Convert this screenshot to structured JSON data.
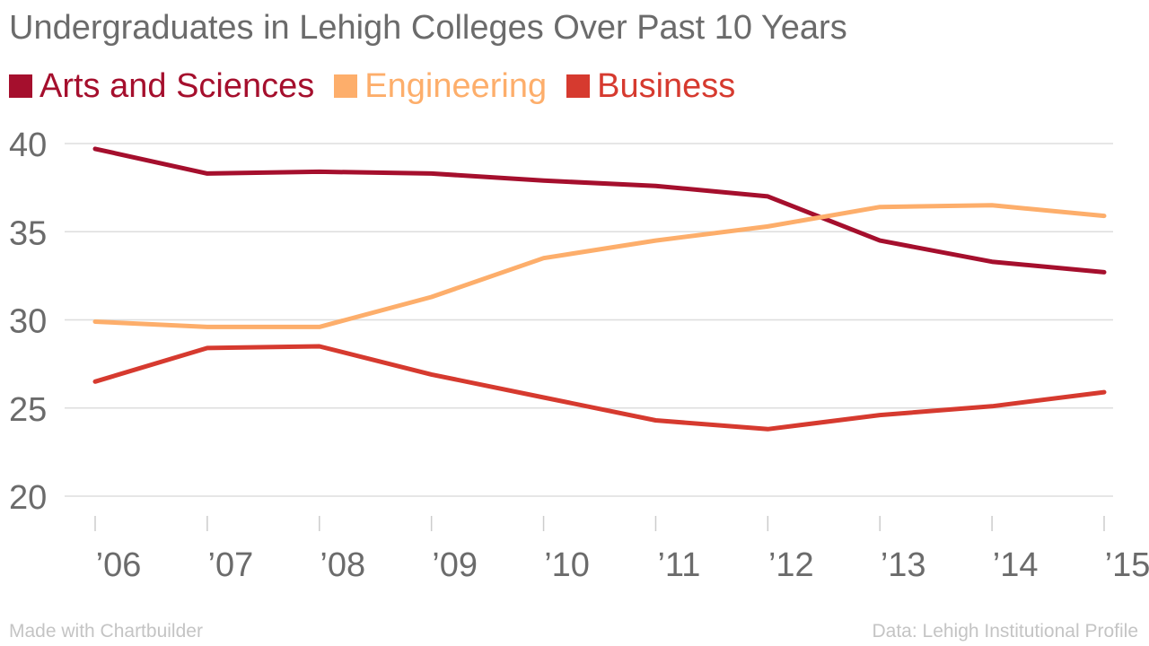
{
  "header": {
    "title": "Undergraduates in Lehigh Colleges Over Past 10 Years"
  },
  "footer": {
    "made_with": "Made with Chartbuilder",
    "source": "Data: Lehigh Institutional Profile"
  },
  "chart_data": {
    "type": "line",
    "title": "Undergraduates in Lehigh Colleges Over Past 10 Years",
    "xlabel": "",
    "ylabel": "",
    "categories": [
      "’06",
      "’07",
      "’08",
      "’09",
      "’10",
      "’11",
      "’12",
      "’13",
      "’14",
      "’15"
    ],
    "ylim": [
      20,
      40
    ],
    "yticks": [
      40,
      35,
      30,
      25,
      20
    ],
    "grid": true,
    "legend_position": "top-left",
    "series": [
      {
        "name": "Arts and Sciences",
        "color": "#a50f2d",
        "values": [
          39.7,
          38.3,
          38.4,
          38.3,
          37.9,
          37.6,
          37.0,
          34.5,
          33.3,
          32.7
        ]
      },
      {
        "name": "Engineering",
        "color": "#fdae6b",
        "values": [
          29.9,
          29.6,
          29.6,
          31.3,
          33.5,
          34.5,
          35.3,
          36.4,
          36.5,
          35.9
        ]
      },
      {
        "name": "Business",
        "color": "#d63a2f",
        "values": [
          26.5,
          28.4,
          28.5,
          26.9,
          25.6,
          24.3,
          23.8,
          24.6,
          25.1,
          25.9
        ]
      }
    ]
  }
}
